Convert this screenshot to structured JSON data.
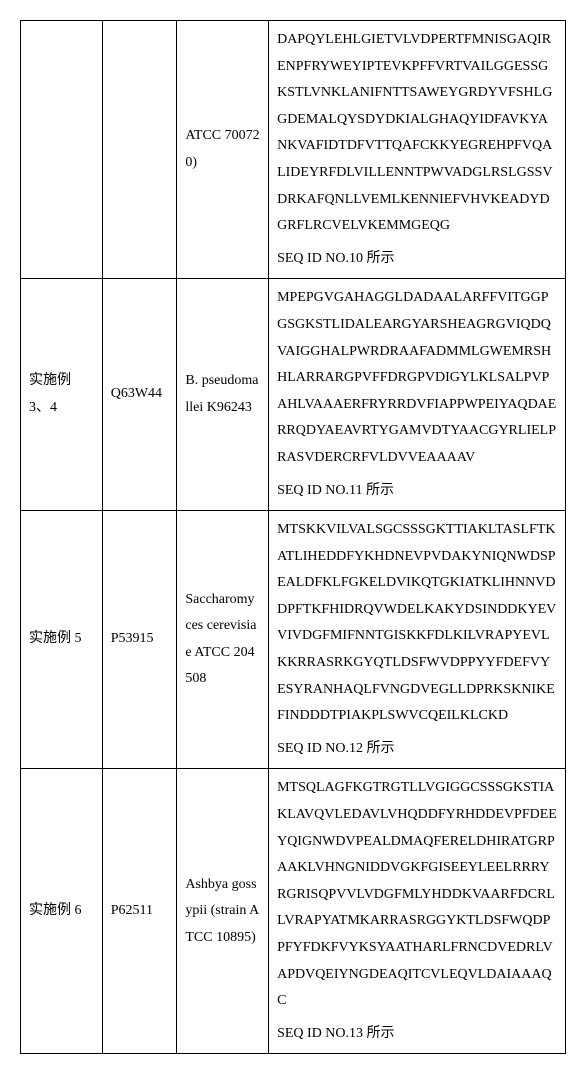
{
  "rows": [
    {
      "col1": "",
      "col2": "",
      "col3": "ATCC 700720)",
      "seq": "DAPQYLEHLGIETVLVDPERTFMNISGAQIRENPFRYWEYIPTEVKPFFVRTVAILGGESSGKSTLVNKLANIFNTTSAWEYGRDYVFSHLGGDEMALQYSDYDKIALGHAQYIDFAVKYANKVAFIDTDFVTTQAFCKKYEGREHPFVQALIDEYRFDLVILLENNTPWVADGLRSLGSSVDRKAFQNLLVEMLKENNIEFVHVKEADYDGRFLRCVELVKEMMGEQG",
      "seqid": "SEQ ID NO.10 所示"
    },
    {
      "col1": "实施例 3、4",
      "col2": "Q63W44",
      "col3": "B. pseudomallei K96243",
      "seq": "MPEPGVGAHAGGLDADAALARFFVITGGPGSGKSTLIDALEARGYARSHEAGRGVIQDQVAIGGHALPWRDRAAFADMMLGWEMRSHHLARRARGPVFFDRGPVDIGYLKLSALPVPAHLVAAAERFRYRRDVFIAPPWPEIYAQDAERRQDYAEAVRTYGAMVDTYAACGYRLIELPRASVDERCRFVLDVVEAAAAV",
      "seqid": "SEQ ID NO.11 所示"
    },
    {
      "col1": "实施例 5",
      "col2": "P53915",
      "col3": "Saccharomyces cerevisiae ATCC 204508",
      "seq": "MTSKKVILVALSGCSSSGKTTIAKLTASLFTKATLIHEDDFYKHDNEVPVDAKYNIQNWDSPEALDFKLFGKELDVIKQTGKIATKLIHNNVDDPFTKFHIDRQVWDELKAKYDSINDDKYEVVIVDGFMIFNNTGISKKFDLKILVRAPYEVLKKRRASRKGYQTLDSFWVDPPYYFDEFVYESYRANHAQLFVNGDVEGLLDPRKSKNIKEFINDDDTPIAKPLSWVCQEILKLCKD",
      "seqid": "SEQ ID NO.12 所示"
    },
    {
      "col1": "实施例 6",
      "col2": "P62511",
      "col3": "Ashbya gossypii (strain ATCC 10895)",
      "seq": "MTSQLAGFKGTRGTLLVGIGGCSSSGKSTIAKLAVQVLEDAVLVHQDDFYRHDDEVPFDEEYQIGNWDVPEALDMAQFERELDHIRATGRPAAKLVHNGNIDDVGKFGISEEYLEELRRRYRGRISQPVVLVDGFMLYHDDKVAARFDCRLLVRAPYATMKARRASRGGYKTLDSFWQDPPFYFDKFVYKSYAATHARLFRNCDVEDRLVAPDVQEIYNGDEAQITCVLEQVLDAIAAAQC",
      "seqid": "SEQ ID NO.13 所示"
    }
  ]
}
